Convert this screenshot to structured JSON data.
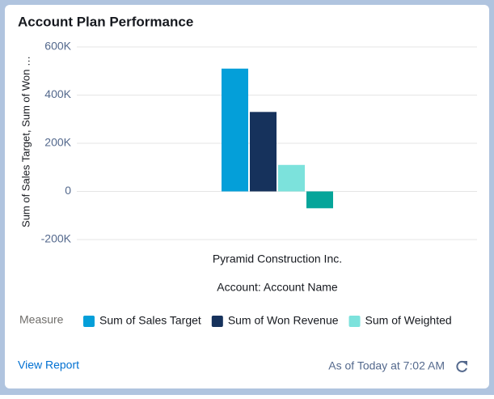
{
  "chart_data": {
    "type": "bar",
    "title": "Account Plan Performance",
    "y_label": "Sum of Sales Target, Sum of Won …",
    "x_label": "Account: Account Name",
    "legend_title": "Measure",
    "categories": [
      "Pyramid Construction Inc."
    ],
    "series": [
      {
        "name": "Sum of Sales Target",
        "color": "#049fd9",
        "values": [
          510000
        ]
      },
      {
        "name": "Sum of Won Revenue",
        "color": "#16325c",
        "values": [
          330000
        ]
      },
      {
        "name": "Sum of Weighted",
        "color": "#7ce2dc",
        "values": [
          110000
        ]
      },
      {
        "color": "#06a59a",
        "values": [
          -70000
        ]
      }
    ],
    "ylim": [
      -200000,
      600000
    ],
    "yticks": [
      {
        "value": -200000,
        "label": "-200K"
      },
      0,
      {
        "value": 200000,
        "label": "200K"
      },
      {
        "value": 400000,
        "label": "400K"
      },
      {
        "value": 600000,
        "label": "600K"
      }
    ],
    "grid": true
  },
  "footer": {
    "link": "View Report",
    "timestamp": "As of Today at 7:02 AM"
  }
}
